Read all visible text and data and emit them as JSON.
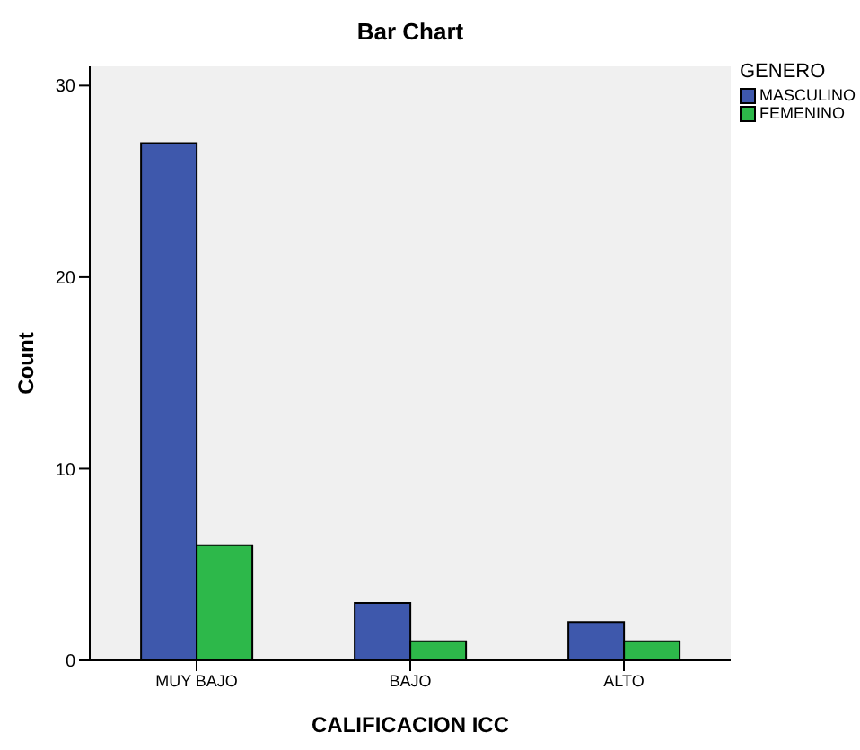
{
  "chart_data": {
    "type": "bar",
    "title": "Bar Chart",
    "xlabel": "CALIFICACION ICC",
    "ylabel": "Count",
    "legend_title": "GENERO",
    "categories": [
      "MUY BAJO",
      "BAJO",
      "ALTO"
    ],
    "series": [
      {
        "name": "MASCULINO",
        "color": "#3e58ac",
        "values": [
          27,
          3,
          2
        ]
      },
      {
        "name": "FEMENINO",
        "color": "#2db84a",
        "values": [
          6,
          1,
          1
        ]
      }
    ],
    "ylim": [
      0,
      31
    ],
    "yticks": [
      0,
      10,
      20,
      30
    ],
    "legend": "top right"
  }
}
